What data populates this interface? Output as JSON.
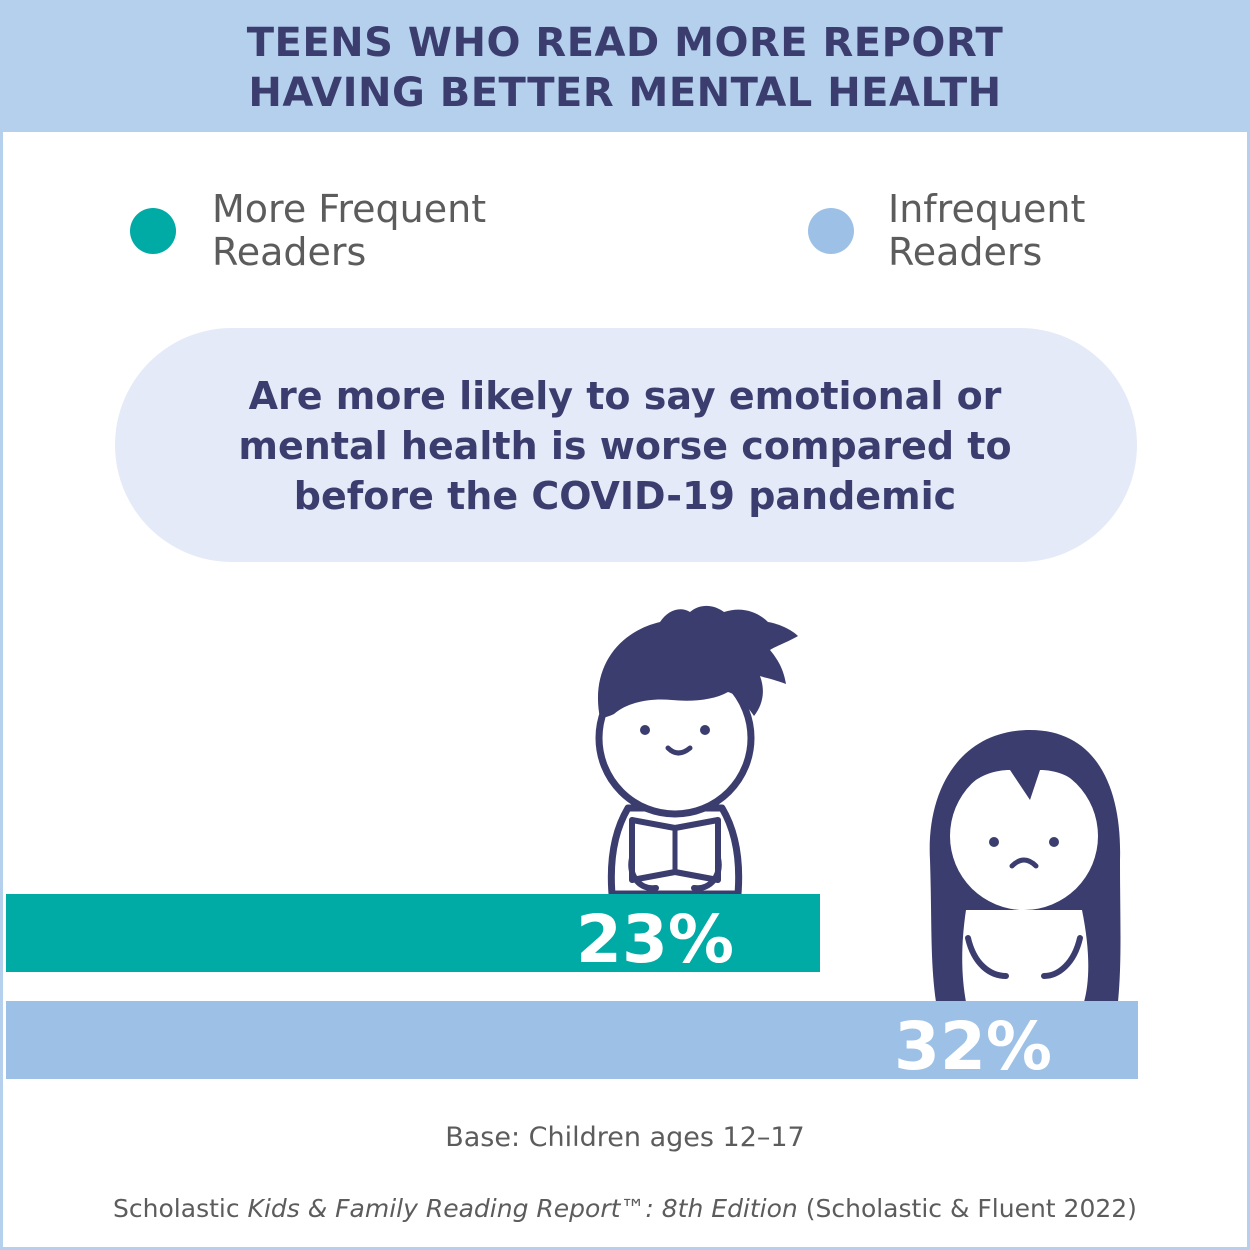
{
  "title": {
    "line1": "TEENS WHO READ MORE REPORT",
    "line2": "HAVING BETTER MENTAL HEALTH"
  },
  "legend": [
    {
      "line1": "More Frequent",
      "line2": "Readers",
      "color": "#00aaa5"
    },
    {
      "line1": "Infrequent",
      "line2": "Readers",
      "color": "#9dc1e6"
    }
  ],
  "statement": {
    "line1": "Are more likely to say emotional or",
    "line2": "mental health is worse compared to",
    "line3": "before the COVID-19 pandemic"
  },
  "chart_data": {
    "type": "bar",
    "orientation": "horizontal",
    "categories": [
      "More Frequent Readers",
      "Infrequent Readers"
    ],
    "values": [
      23,
      32
    ],
    "value_labels": [
      "23%",
      "32%"
    ],
    "unit": "%",
    "colors": [
      "#00aaa5",
      "#9dc1e6"
    ],
    "title": "TEENS WHO READ MORE REPORT HAVING BETTER MENTAL HEALTH",
    "xlabel": "",
    "ylabel": "",
    "xlim": [
      0,
      32
    ],
    "grid": false,
    "legend": "top"
  },
  "footer": {
    "base": "Base: Children ages 12–17",
    "source_pre": "Scholastic ",
    "source_italic": "Kids & Family Reading Report™: 8th Edition",
    "source_post": " (Scholastic & Fluent 2022)"
  },
  "icons": {
    "frequent_reader": "boy-reading-book-icon",
    "infrequent_reader": "sad-girl-icon"
  },
  "colors": {
    "title_band": "#b4d0ec",
    "heading_text": "#3b3d6e",
    "bubble": "#e4eaf7",
    "figure": "#3b3d6e"
  }
}
